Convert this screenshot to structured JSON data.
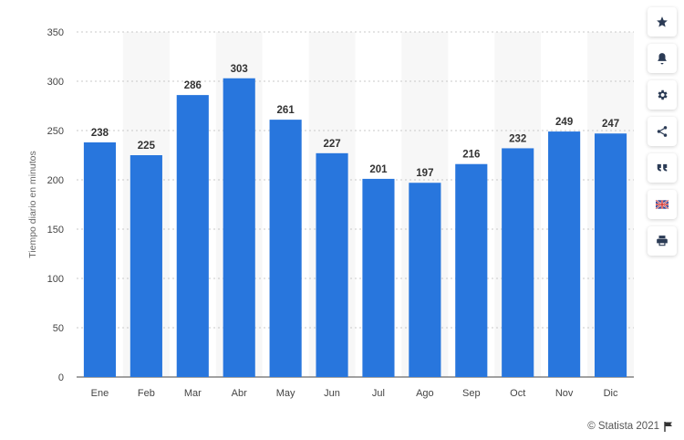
{
  "chart_data": {
    "type": "bar",
    "categories": [
      "Ene",
      "Feb",
      "Mar",
      "Abr",
      "May",
      "Jun",
      "Jul",
      "Ago",
      "Sep",
      "Oct",
      "Nov",
      "Dic"
    ],
    "values": [
      238,
      225,
      286,
      303,
      261,
      227,
      201,
      197,
      216,
      232,
      249,
      247
    ],
    "ylabel": "Tiempo diario en minutos",
    "xlabel": "",
    "ylim": [
      0,
      350
    ],
    "yticks": [
      0,
      50,
      100,
      150,
      200,
      250,
      300,
      350
    ],
    "grid": true,
    "bar_color": "#2876dd"
  },
  "credit": {
    "text": "© Statista 2021"
  },
  "toolbar": {
    "icons": [
      "star-icon",
      "bell-icon",
      "gear-icon",
      "share-icon",
      "quote-icon",
      "flag-icon",
      "print-icon"
    ]
  }
}
